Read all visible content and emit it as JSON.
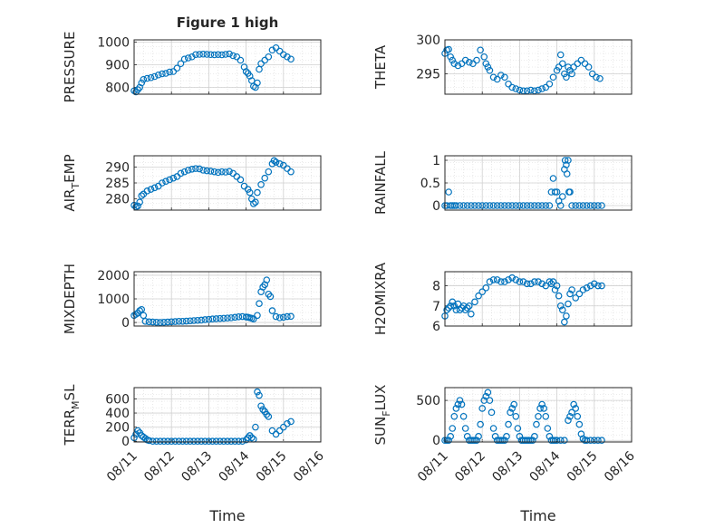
{
  "figure": {
    "title": "Figure 1 high",
    "xlabel": "Time",
    "x_tick_labels": [
      "08/11",
      "08/12",
      "08/13",
      "08/14",
      "08/15",
      "08/16"
    ],
    "marker_color": "#0072BD"
  },
  "chart_data": [
    {
      "type": "scatter",
      "title": "Figure 1 high",
      "ylabel": "PRESSURE",
      "ylim": [
        770,
        1010
      ],
      "yticks": [
        800,
        900,
        1000
      ],
      "ytick_labels": [
        "800",
        "900",
        "1000"
      ],
      "xlim": [
        0,
        5
      ],
      "grid": true,
      "x": [
        0.0,
        0.05,
        0.1,
        0.15,
        0.2,
        0.25,
        0.35,
        0.45,
        0.55,
        0.65,
        0.75,
        0.85,
        0.95,
        1.05,
        1.15,
        1.25,
        1.35,
        1.45,
        1.55,
        1.65,
        1.75,
        1.85,
        1.95,
        2.05,
        2.15,
        2.25,
        2.35,
        2.45,
        2.55,
        2.65,
        2.75,
        2.85,
        2.95,
        3.0,
        3.05,
        3.1,
        3.15,
        3.2,
        3.25,
        3.3,
        3.35,
        3.4,
        3.5,
        3.6,
        3.7,
        3.8,
        3.9,
        4.0,
        4.1,
        4.2
      ],
      "y": [
        785,
        780,
        790,
        800,
        820,
        835,
        840,
        843,
        848,
        855,
        860,
        862,
        868,
        870,
        885,
        905,
        925,
        930,
        935,
        945,
        946,
        947,
        946,
        945,
        944,
        945,
        944,
        946,
        948,
        940,
        935,
        920,
        890,
        870,
        862,
        850,
        830,
        805,
        800,
        820,
        880,
        905,
        920,
        935,
        965,
        975,
        960,
        945,
        935,
        925
      ]
    },
    {
      "type": "scatter",
      "ylabel": "THETA",
      "ylim": [
        292,
        300
      ],
      "yticks": [
        295,
        300
      ],
      "ytick_labels": [
        "295",
        "300"
      ],
      "xlim": [
        0,
        5
      ],
      "grid": true,
      "x": [
        0.0,
        0.05,
        0.1,
        0.15,
        0.2,
        0.25,
        0.35,
        0.45,
        0.55,
        0.65,
        0.75,
        0.85,
        0.95,
        1.05,
        1.1,
        1.15,
        1.2,
        1.3,
        1.4,
        1.5,
        1.6,
        1.7,
        1.8,
        1.9,
        2.0,
        2.1,
        2.2,
        2.3,
        2.4,
        2.5,
        2.6,
        2.7,
        2.8,
        2.9,
        3.0,
        3.05,
        3.1,
        3.15,
        3.2,
        3.25,
        3.3,
        3.35,
        3.4,
        3.45,
        3.55,
        3.65,
        3.75,
        3.85,
        3.95,
        4.05,
        4.15
      ],
      "y": [
        298,
        298.5,
        298.6,
        297.5,
        297,
        296.5,
        296.2,
        296.5,
        297,
        296.7,
        296.5,
        297,
        298.5,
        297.5,
        296.5,
        296,
        295.5,
        294.5,
        294.2,
        294.8,
        294.5,
        293.5,
        293,
        292.8,
        292.6,
        292.5,
        292.5,
        292.6,
        292.5,
        292.6,
        292.8,
        293,
        293.5,
        294.5,
        295.5,
        296,
        297.8,
        296.5,
        295,
        294.5,
        296,
        295.5,
        295,
        296,
        296.5,
        297,
        296.5,
        296,
        295,
        294.5,
        294.3
      ]
    },
    {
      "type": "scatter",
      "ylabel": "AIR_TEMP",
      "ylim": [
        276.5,
        293.5
      ],
      "yticks": [
        280,
        285,
        290
      ],
      "ytick_labels": [
        "280",
        "285",
        "290"
      ],
      "xlim": [
        0,
        5
      ],
      "grid": true,
      "x": [
        0.0,
        0.05,
        0.1,
        0.15,
        0.2,
        0.25,
        0.35,
        0.45,
        0.55,
        0.65,
        0.75,
        0.85,
        0.95,
        1.05,
        1.15,
        1.25,
        1.35,
        1.45,
        1.55,
        1.65,
        1.75,
        1.85,
        1.95,
        2.05,
        2.15,
        2.25,
        2.35,
        2.45,
        2.55,
        2.65,
        2.75,
        2.85,
        2.95,
        3.05,
        3.1,
        3.15,
        3.2,
        3.25,
        3.3,
        3.4,
        3.5,
        3.6,
        3.7,
        3.75,
        3.8,
        3.9,
        4.0,
        4.1,
        4.2
      ],
      "y": [
        278,
        277.5,
        277.8,
        279,
        281,
        281.5,
        282.5,
        283,
        283.5,
        284,
        285,
        285.5,
        286,
        286.5,
        287,
        288,
        288.5,
        289,
        289.3,
        289.5,
        289.4,
        289,
        288.8,
        288.7,
        288.5,
        288.3,
        288.5,
        288.4,
        288.6,
        288,
        287,
        286,
        284,
        283,
        282,
        280,
        278.5,
        279,
        282,
        284.5,
        286.5,
        288.5,
        291,
        292,
        291.5,
        291,
        290.5,
        289.5,
        288.5
      ]
    },
    {
      "type": "scatter",
      "ylabel": "RAINFALL",
      "ylim": [
        -0.1,
        1.1
      ],
      "yticks": [
        0,
        0.5,
        1
      ],
      "ytick_labels": [
        "0",
        "0.5",
        "1"
      ],
      "xlim": [
        0,
        5
      ],
      "grid": true,
      "x": [
        0.0,
        0.05,
        0.1,
        0.15,
        0.2,
        0.25,
        0.3,
        0.4,
        0.5,
        0.6,
        0.7,
        0.8,
        0.9,
        1.0,
        1.1,
        1.2,
        1.3,
        1.4,
        1.5,
        1.6,
        1.7,
        1.8,
        1.9,
        2.0,
        2.1,
        2.2,
        2.3,
        2.4,
        2.5,
        2.6,
        2.7,
        2.8,
        2.85,
        2.9,
        2.95,
        3.0,
        3.05,
        3.1,
        3.15,
        3.2,
        3.22,
        3.25,
        3.27,
        3.3,
        3.32,
        3.35,
        3.4,
        3.5,
        3.6,
        3.7,
        3.8,
        3.9,
        4.0,
        4.1,
        4.2
      ],
      "y": [
        0,
        0,
        0.3,
        0,
        0,
        0,
        0,
        0,
        0,
        0,
        0,
        0,
        0,
        0,
        0,
        0,
        0,
        0,
        0,
        0,
        0,
        0,
        0,
        0,
        0,
        0,
        0,
        0,
        0,
        0,
        0,
        0,
        0.3,
        0.6,
        0.3,
        0.3,
        0.1,
        0,
        0.2,
        0.8,
        1.0,
        0.9,
        0.7,
        1.0,
        0.3,
        0.3,
        0,
        0,
        0,
        0,
        0,
        0,
        0,
        0,
        0
      ]
    },
    {
      "type": "scatter",
      "ylabel": "MIXDEPTH",
      "ylim": [
        -150,
        2150
      ],
      "yticks": [
        0,
        1000,
        2000
      ],
      "ytick_labels": [
        "0",
        "1000",
        "2000"
      ],
      "xlim": [
        0,
        5
      ],
      "grid": true,
      "x": [
        0.0,
        0.05,
        0.1,
        0.15,
        0.2,
        0.25,
        0.3,
        0.4,
        0.5,
        0.6,
        0.7,
        0.8,
        0.9,
        1.0,
        1.1,
        1.2,
        1.3,
        1.4,
        1.5,
        1.6,
        1.7,
        1.8,
        1.9,
        2.0,
        2.1,
        2.2,
        2.3,
        2.4,
        2.5,
        2.6,
        2.7,
        2.8,
        2.9,
        3.0,
        3.05,
        3.1,
        3.15,
        3.2,
        3.3,
        3.35,
        3.4,
        3.45,
        3.5,
        3.55,
        3.6,
        3.65,
        3.7,
        3.8,
        3.9,
        4.0,
        4.1,
        4.2
      ],
      "y": [
        300,
        350,
        400,
        500,
        550,
        300,
        50,
        30,
        20,
        10,
        0,
        10,
        20,
        30,
        40,
        50,
        50,
        60,
        70,
        80,
        90,
        100,
        120,
        130,
        150,
        160,
        170,
        180,
        190,
        200,
        220,
        240,
        250,
        230,
        220,
        200,
        180,
        150,
        300,
        800,
        1300,
        1500,
        1600,
        1800,
        1200,
        1100,
        500,
        250,
        200,
        220,
        250,
        260
      ]
    },
    {
      "type": "scatter",
      "ylabel": "H2OMIXRA",
      "ylim": [
        6,
        8.7
      ],
      "yticks": [
        6,
        7,
        8
      ],
      "ytick_labels": [
        "6",
        "7",
        "8"
      ],
      "xlim": [
        0,
        5
      ],
      "grid": true,
      "x": [
        0.0,
        0.05,
        0.1,
        0.15,
        0.2,
        0.25,
        0.3,
        0.35,
        0.4,
        0.45,
        0.5,
        0.55,
        0.6,
        0.65,
        0.7,
        0.8,
        0.9,
        1.0,
        1.1,
        1.2,
        1.3,
        1.4,
        1.5,
        1.6,
        1.7,
        1.8,
        1.9,
        2.0,
        2.1,
        2.2,
        2.3,
        2.4,
        2.5,
        2.6,
        2.7,
        2.8,
        2.85,
        2.9,
        2.95,
        3.0,
        3.05,
        3.1,
        3.15,
        3.2,
        3.25,
        3.3,
        3.35,
        3.4,
        3.5,
        3.6,
        3.7,
        3.8,
        3.9,
        4.0,
        4.1,
        4.2
      ],
      "y": [
        6.5,
        6.8,
        6.9,
        7.0,
        7.2,
        7.0,
        6.8,
        7.1,
        6.8,
        6.9,
        7.0,
        6.8,
        6.9,
        7.0,
        6.6,
        7.2,
        7.5,
        7.7,
        7.9,
        8.2,
        8.3,
        8.3,
        8.2,
        8.2,
        8.3,
        8.4,
        8.3,
        8.2,
        8.2,
        8.1,
        8.1,
        8.2,
        8.2,
        8.1,
        8.0,
        8.2,
        8.1,
        8.2,
        7.8,
        8.0,
        7.5,
        7.0,
        6.8,
        6.2,
        6.5,
        7.1,
        7.6,
        7.8,
        7.4,
        7.6,
        7.8,
        7.9,
        8.0,
        8.1,
        8.0,
        8.0
      ]
    },
    {
      "type": "scatter",
      "ylabel": "TERR_MSL",
      "ylim": [
        -10,
        760
      ],
      "yticks": [
        0,
        200,
        400,
        600
      ],
      "ytick_labels": [
        "0",
        "200",
        "400",
        "600"
      ],
      "xlim": [
        0,
        5
      ],
      "grid": true,
      "x": [
        0.0,
        0.05,
        0.1,
        0.15,
        0.2,
        0.25,
        0.3,
        0.35,
        0.4,
        0.5,
        0.6,
        0.7,
        0.8,
        0.9,
        1.0,
        1.1,
        1.2,
        1.3,
        1.4,
        1.5,
        1.6,
        1.7,
        1.8,
        1.9,
        2.0,
        2.1,
        2.2,
        2.3,
        2.4,
        2.5,
        2.6,
        2.7,
        2.8,
        2.9,
        3.0,
        3.05,
        3.1,
        3.15,
        3.2,
        3.25,
        3.3,
        3.35,
        3.4,
        3.45,
        3.5,
        3.55,
        3.6,
        3.7,
        3.8,
        3.9,
        4.0,
        4.1,
        4.2
      ],
      "y": [
        50,
        100,
        150,
        120,
        80,
        60,
        40,
        20,
        10,
        0,
        0,
        0,
        0,
        0,
        0,
        0,
        0,
        0,
        0,
        0,
        0,
        0,
        0,
        0,
        0,
        0,
        0,
        0,
        0,
        0,
        0,
        0,
        0,
        0,
        20,
        50,
        80,
        50,
        30,
        200,
        700,
        650,
        500,
        450,
        420,
        380,
        350,
        150,
        100,
        150,
        200,
        250,
        280
      ]
    },
    {
      "type": "scatter",
      "ylabel": "SUN_FLUX",
      "ylim": [
        -20,
        660
      ],
      "yticks": [
        0,
        500
      ],
      "ytick_labels": [
        "0",
        "500"
      ],
      "xlim": [
        0,
        5
      ],
      "grid": true,
      "x": [
        0.0,
        0.05,
        0.1,
        0.15,
        0.2,
        0.25,
        0.3,
        0.35,
        0.4,
        0.45,
        0.5,
        0.55,
        0.6,
        0.65,
        0.7,
        0.75,
        0.8,
        0.85,
        0.9,
        0.95,
        1.0,
        1.05,
        1.1,
        1.15,
        1.2,
        1.25,
        1.3,
        1.35,
        1.4,
        1.45,
        1.5,
        1.55,
        1.6,
        1.65,
        1.7,
        1.75,
        1.8,
        1.85,
        1.9,
        1.95,
        2.0,
        2.05,
        2.1,
        2.15,
        2.2,
        2.25,
        2.3,
        2.35,
        2.4,
        2.45,
        2.5,
        2.55,
        2.6,
        2.65,
        2.7,
        2.75,
        2.8,
        2.85,
        2.9,
        2.95,
        3.0,
        3.1,
        3.2,
        3.3,
        3.35,
        3.4,
        3.45,
        3.5,
        3.55,
        3.6,
        3.65,
        3.7,
        3.75,
        3.8,
        3.9,
        4.0,
        4.1,
        4.2
      ],
      "y": [
        0,
        0,
        0,
        50,
        150,
        300,
        400,
        450,
        500,
        450,
        300,
        150,
        50,
        0,
        0,
        0,
        0,
        0,
        50,
        200,
        400,
        500,
        550,
        600,
        500,
        350,
        150,
        50,
        0,
        0,
        0,
        0,
        0,
        50,
        200,
        350,
        400,
        450,
        300,
        150,
        50,
        0,
        0,
        0,
        0,
        0,
        0,
        0,
        50,
        200,
        300,
        400,
        450,
        400,
        300,
        150,
        50,
        0,
        0,
        0,
        0,
        0,
        0,
        250,
        300,
        350,
        450,
        400,
        300,
        200,
        80,
        20,
        0,
        0,
        0,
        0,
        0,
        0
      ]
    }
  ],
  "ylabel_parts": [
    {
      "main": "PRESSURE",
      "sub": "",
      "tail": ""
    },
    {
      "main": "THETA",
      "sub": "",
      "tail": ""
    },
    {
      "main": "AIR",
      "sub": "T",
      "tail": "EMP"
    },
    {
      "main": "RAINFALL",
      "sub": "",
      "tail": ""
    },
    {
      "main": "MIXDEPTH",
      "sub": "",
      "tail": ""
    },
    {
      "main": "H2OMIXRA",
      "sub": "",
      "tail": ""
    },
    {
      "main": "TERR",
      "sub": "M",
      "tail": "SL"
    },
    {
      "main": "SUN",
      "sub": "F",
      "tail": "LUX"
    }
  ]
}
